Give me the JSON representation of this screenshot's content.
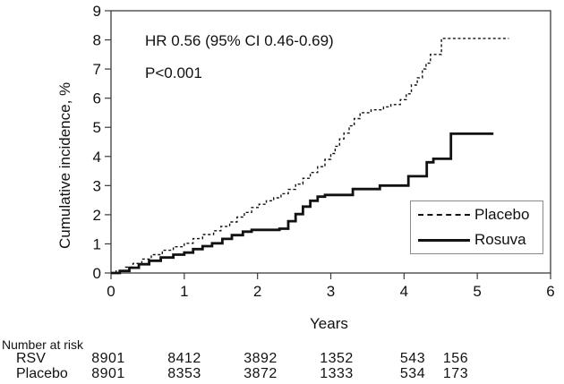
{
  "figure": {
    "type_note": "Kaplan-Meier cumulative incidence plot"
  },
  "number_at_risk": {
    "title": "Number at risk",
    "rows": [
      {
        "label": "RSV",
        "values": [
          "8901",
          "8412",
          "3892",
          "1352",
          "543",
          "156"
        ]
      },
      {
        "label": "Placebo",
        "values": [
          "8901",
          "8353",
          "3872",
          "1333",
          "534",
          "173"
        ]
      }
    ]
  },
  "chart_data": {
    "type": "line",
    "subtype": "kaplan-meier-step",
    "title": "",
    "xlabel": "Years",
    "ylabel": "Cumulative incidence, %",
    "xlim": [
      0,
      6
    ],
    "ylim": [
      0,
      9
    ],
    "x_ticks": [
      0,
      1,
      2,
      3,
      4,
      5,
      6
    ],
    "y_ticks": [
      0,
      1,
      2,
      3,
      4,
      5,
      6,
      7,
      8,
      9
    ],
    "grid": false,
    "legend_position": "lower right",
    "annotations": [
      "HR 0.56 (95% CI 0.46-0.69)",
      "P<0.001"
    ],
    "line_color": "#111111",
    "series": [
      {
        "name": "Placebo",
        "line": "dashed",
        "step": true,
        "points": [
          [
            0,
            0
          ],
          [
            0.07,
            0.07
          ],
          [
            0.2,
            0.2
          ],
          [
            0.3,
            0.33
          ],
          [
            0.42,
            0.48
          ],
          [
            0.55,
            0.63
          ],
          [
            0.7,
            0.78
          ],
          [
            0.85,
            0.9
          ],
          [
            1.0,
            1.02
          ],
          [
            1.12,
            1.18
          ],
          [
            1.25,
            1.32
          ],
          [
            1.4,
            1.45
          ],
          [
            1.5,
            1.6
          ],
          [
            1.62,
            1.75
          ],
          [
            1.72,
            1.92
          ],
          [
            1.82,
            2.08
          ],
          [
            1.92,
            2.25
          ],
          [
            2.02,
            2.36
          ],
          [
            2.12,
            2.48
          ],
          [
            2.22,
            2.58
          ],
          [
            2.32,
            2.72
          ],
          [
            2.42,
            2.87
          ],
          [
            2.52,
            3.05
          ],
          [
            2.62,
            3.25
          ],
          [
            2.72,
            3.45
          ],
          [
            2.82,
            3.65
          ],
          [
            2.92,
            3.9
          ],
          [
            3.0,
            4.1
          ],
          [
            3.06,
            4.35
          ],
          [
            3.12,
            4.6
          ],
          [
            3.18,
            4.8
          ],
          [
            3.25,
            5.05
          ],
          [
            3.32,
            5.3
          ],
          [
            3.4,
            5.5
          ],
          [
            3.55,
            5.6
          ],
          [
            3.72,
            5.7
          ],
          [
            3.82,
            5.78
          ],
          [
            3.95,
            5.95
          ],
          [
            4.03,
            6.15
          ],
          [
            4.1,
            6.45
          ],
          [
            4.18,
            6.7
          ],
          [
            4.25,
            7.0
          ],
          [
            4.3,
            7.2
          ],
          [
            4.36,
            7.5
          ],
          [
            4.51,
            8.05
          ],
          [
            5.43,
            8.05
          ]
        ]
      },
      {
        "name": "Rosuva",
        "line": "solid",
        "step": true,
        "points": [
          [
            0,
            0
          ],
          [
            0.12,
            0.07
          ],
          [
            0.25,
            0.18
          ],
          [
            0.38,
            0.3
          ],
          [
            0.52,
            0.42
          ],
          [
            0.68,
            0.53
          ],
          [
            0.85,
            0.63
          ],
          [
            1.0,
            0.7
          ],
          [
            1.12,
            0.82
          ],
          [
            1.25,
            0.92
          ],
          [
            1.38,
            1.02
          ],
          [
            1.52,
            1.17
          ],
          [
            1.65,
            1.3
          ],
          [
            1.8,
            1.42
          ],
          [
            1.92,
            1.48
          ],
          [
            2.3,
            1.52
          ],
          [
            2.42,
            1.78
          ],
          [
            2.52,
            2.02
          ],
          [
            2.62,
            2.28
          ],
          [
            2.72,
            2.48
          ],
          [
            2.82,
            2.62
          ],
          [
            2.92,
            2.68
          ],
          [
            3.3,
            2.88
          ],
          [
            3.67,
            3.0
          ],
          [
            4.06,
            3.32
          ],
          [
            4.31,
            3.8
          ],
          [
            4.4,
            3.92
          ],
          [
            4.64,
            4.78
          ],
          [
            5.22,
            4.78
          ]
        ]
      }
    ]
  }
}
